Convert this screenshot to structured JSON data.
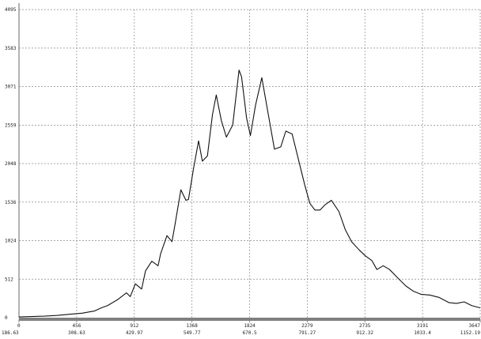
{
  "chart_data": {
    "type": "line",
    "title": "",
    "xlabel": "",
    "ylabel": "",
    "grid": true,
    "legend": "none",
    "xlim": [
      0,
      3647
    ],
    "ylim": [
      0,
      4096
    ],
    "y_ticks": [
      0,
      512,
      1024,
      1536,
      2048,
      2559,
      3071,
      3583,
      4095
    ],
    "x_ticks": [
      {
        "value": 0,
        "label": "0",
        "sublabel": "186.63"
      },
      {
        "value": 456,
        "label": "456",
        "sublabel": "308.63"
      },
      {
        "value": 912,
        "label": "912",
        "sublabel": "429.97"
      },
      {
        "value": 1368,
        "label": "1368",
        "sublabel": "549.77"
      },
      {
        "value": 1824,
        "label": "1824",
        "sublabel": "670.5"
      },
      {
        "value": 2279,
        "label": "2279",
        "sublabel": "791.27"
      },
      {
        "value": 2735,
        "label": "2735",
        "sublabel": "912.32"
      },
      {
        "value": 3191,
        "label": "3191",
        "sublabel": "1033.4"
      },
      {
        "value": 3647,
        "label": "3647",
        "sublabel": "1152.19"
      }
    ],
    "colors": {
      "line": "#111111",
      "grid": "#8a8a8a",
      "axis": "#666666",
      "baseline": "#808080"
    },
    "series": [
      {
        "x": [
          0,
          100,
          200,
          300,
          400,
          500,
          600,
          650,
          700,
          780,
          850,
          880,
          920,
          970,
          1000,
          1050,
          1100,
          1120,
          1170,
          1210,
          1240,
          1280,
          1320,
          1340,
          1380,
          1420,
          1450,
          1490,
          1530,
          1560,
          1600,
          1640,
          1690,
          1740,
          1760,
          1800,
          1830,
          1870,
          1920,
          1980,
          2020,
          2070,
          2110,
          2160,
          2210,
          2260,
          2300,
          2340,
          2380,
          2420,
          2470,
          2530,
          2580,
          2630,
          2690,
          2740,
          2790,
          2830,
          2880,
          2930,
          3000,
          3060,
          3120,
          3180,
          3250,
          3320,
          3400,
          3460,
          3520,
          3580,
          3647
        ],
        "y": [
          10,
          15,
          20,
          30,
          45,
          60,
          90,
          130,
          160,
          240,
          330,
          280,
          450,
          380,
          620,
          750,
          690,
          850,
          1090,
          1010,
          1300,
          1700,
          1560,
          1570,
          1980,
          2350,
          2080,
          2150,
          2700,
          2960,
          2620,
          2400,
          2560,
          3290,
          3200,
          2650,
          2420,
          2820,
          3190,
          2620,
          2240,
          2270,
          2480,
          2440,
          2100,
          1760,
          1520,
          1430,
          1430,
          1500,
          1560,
          1410,
          1170,
          1010,
          900,
          820,
          760,
          640,
          690,
          640,
          520,
          420,
          350,
          310,
          300,
          270,
          200,
          190,
          210,
          160,
          130
        ]
      }
    ]
  }
}
